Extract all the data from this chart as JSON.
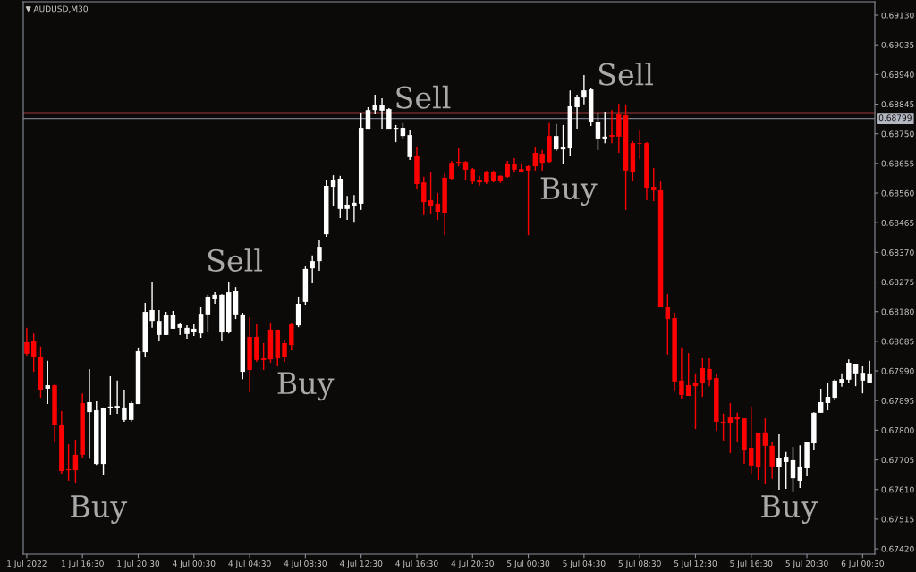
{
  "chart_data": {
    "type": "candlestick",
    "title": "AUDUSD,M30",
    "categories": [
      "1 Jul 2022",
      null,
      null,
      null,
      null,
      null,
      null,
      null,
      "1 Jul 16:30",
      null,
      null,
      null,
      null,
      null,
      null,
      null,
      "1 Jul 20:30",
      null,
      null,
      null,
      null,
      null,
      null,
      null,
      "4 Jul 00:30",
      null,
      null,
      null,
      null,
      null,
      null,
      null,
      "4 Jul 04:30",
      null,
      null,
      null,
      null,
      null,
      null,
      null,
      "4 Jul 08:30",
      null,
      null,
      null,
      null,
      null,
      null,
      null,
      "4 Jul 12:30",
      null,
      null,
      null,
      null,
      null,
      null,
      null,
      "4 Jul 16:30",
      null,
      null,
      null,
      null,
      null,
      null,
      null,
      "4 Jul 20:30",
      null,
      null,
      null,
      null,
      null,
      null,
      null,
      "5 Jul 00:30",
      null,
      null,
      null,
      null,
      null,
      null,
      null,
      "5 Jul 04:30",
      null,
      null,
      null,
      null,
      null,
      null,
      null,
      "5 Jul 08:30",
      null,
      null,
      null,
      null,
      null,
      null,
      null,
      "5 Jul 12:30",
      null,
      null,
      null,
      null,
      null,
      null,
      null,
      "5 Jul 16:30",
      null,
      null,
      null,
      null,
      null,
      null,
      null,
      "5 Jul 20:30",
      null,
      null,
      null,
      null,
      null,
      null,
      null,
      "6 Jul 00:30",
      null
    ],
    "ohlc": [
      [
        0.68082,
        0.68128,
        0.68039,
        0.68045
      ],
      [
        0.68085,
        0.6811,
        0.67987,
        0.68033
      ],
      [
        0.68036,
        0.68068,
        0.67904,
        0.6793
      ],
      [
        0.67933,
        0.68022,
        0.67884,
        0.67944
      ],
      [
        0.67944,
        0.67947,
        0.67764,
        0.67818
      ],
      [
        0.67818,
        0.67861,
        0.67661,
        0.67669
      ],
      [
        0.67675,
        0.67755,
        0.67638,
        0.67672
      ],
      [
        0.67721,
        0.6777,
        0.67632,
        0.67672
      ],
      [
        0.67887,
        0.67918,
        0.67712,
        0.67721
      ],
      [
        0.67858,
        0.67996,
        0.67709,
        0.6789
      ],
      [
        0.67692,
        0.67893,
        0.67689,
        0.67864
      ],
      [
        0.67692,
        0.67873,
        0.67658,
        0.6787
      ],
      [
        0.6787,
        0.67973,
        0.6785,
        0.67876
      ],
      [
        0.6787,
        0.67959,
        0.67853,
        0.67878
      ],
      [
        0.67833,
        0.6793,
        0.67827,
        0.67873
      ],
      [
        0.67833,
        0.67893,
        0.67827,
        0.67887
      ],
      [
        0.67884,
        0.68065,
        0.67884,
        0.68053
      ],
      [
        0.6805,
        0.68208,
        0.68036,
        0.68179
      ],
      [
        0.6815,
        0.68276,
        0.68128,
        0.68185
      ],
      [
        0.68105,
        0.68185,
        0.68085,
        0.6815
      ],
      [
        0.68105,
        0.68179,
        0.68105,
        0.68168
      ],
      [
        0.68125,
        0.68182,
        0.68125,
        0.68168
      ],
      [
        0.68128,
        0.68145,
        0.68105,
        0.68139
      ],
      [
        0.68108,
        0.68136,
        0.68093,
        0.68128
      ],
      [
        0.68116,
        0.68142,
        0.68102,
        0.68125
      ],
      [
        0.6811,
        0.68196,
        0.68096,
        0.68173
      ],
      [
        0.68171,
        0.68234,
        0.68113,
        0.68228
      ],
      [
        0.68222,
        0.68242,
        0.68205,
        0.68234
      ],
      [
        0.68113,
        0.68236,
        0.68085,
        0.68234
      ],
      [
        0.68116,
        0.68274,
        0.6811,
        0.68242
      ],
      [
        0.68171,
        0.68259,
        0.68156,
        0.68245
      ],
      [
        0.67987,
        0.68176,
        0.67964,
        0.68171
      ],
      [
        0.68099,
        0.68162,
        0.67921,
        0.67993
      ],
      [
        0.68099,
        0.68139,
        0.68019,
        0.68025
      ],
      [
        0.6803,
        0.68079,
        0.67993,
        0.68025
      ],
      [
        0.68122,
        0.68145,
        0.68016,
        0.68027
      ],
      [
        0.68122,
        0.68122,
        0.68005,
        0.6803
      ],
      [
        0.68079,
        0.6809,
        0.68019,
        0.68033
      ],
      [
        0.68139,
        0.68145,
        0.68056,
        0.68073
      ],
      [
        0.68136,
        0.68228,
        0.6813,
        0.68205
      ],
      [
        0.68211,
        0.68325,
        0.68202,
        0.68317
      ],
      [
        0.68319,
        0.6836,
        0.68271,
        0.68342
      ],
      [
        0.68342,
        0.68411,
        0.68311,
        0.68388
      ],
      [
        0.68428,
        0.68603,
        0.6842,
        0.68583
      ],
      [
        0.6858,
        0.68617,
        0.68517,
        0.68603
      ],
      [
        0.68509,
        0.68615,
        0.6848,
        0.68606
      ],
      [
        0.68509,
        0.68551,
        0.68474,
        0.68523
      ],
      [
        0.6852,
        0.68554,
        0.68468,
        0.68529
      ],
      [
        0.68526,
        0.68818,
        0.68506,
        0.68769
      ],
      [
        0.68766,
        0.68835,
        0.68766,
        0.68826
      ],
      [
        0.68826,
        0.68875,
        0.68815,
        0.68841
      ],
      [
        0.68824,
        0.68864,
        0.68766,
        0.68841
      ],
      [
        0.68766,
        0.68832,
        0.68766,
        0.68829
      ],
      [
        0.68766,
        0.68778,
        0.68723,
        0.68769
      ],
      [
        0.68743,
        0.68784,
        0.68735,
        0.68769
      ],
      [
        0.68675,
        0.68761,
        0.68666,
        0.68746
      ],
      [
        0.6868,
        0.68706,
        0.68574,
        0.68589
      ],
      [
        0.68594,
        0.68612,
        0.68489,
        0.68531
      ],
      [
        0.68537,
        0.68626,
        0.68494,
        0.68517
      ],
      [
        0.68526,
        0.6856,
        0.68474,
        0.685
      ],
      [
        0.68609,
        0.68623,
        0.68425,
        0.68497
      ],
      [
        0.68657,
        0.68663,
        0.68603,
        0.68606
      ],
      [
        0.6866,
        0.68703,
        0.68646,
        0.68657
      ],
      [
        0.6866,
        0.68663,
        0.68603,
        0.68635
      ],
      [
        0.68637,
        0.6864,
        0.68589,
        0.68597
      ],
      [
        0.68603,
        0.68615,
        0.68583,
        0.68594
      ],
      [
        0.68629,
        0.68632,
        0.68589,
        0.68594
      ],
      [
        0.68629,
        0.68632,
        0.68594,
        0.686
      ],
      [
        0.68615,
        0.68617,
        0.68592,
        0.686
      ],
      [
        0.68652,
        0.68663,
        0.68609,
        0.68612
      ],
      [
        0.68652,
        0.68672,
        0.68629,
        0.68635
      ],
      [
        0.68637,
        0.68655,
        0.68626,
        0.68626
      ],
      [
        0.68646,
        0.68649,
        0.68425,
        0.68632
      ],
      [
        0.68689,
        0.68706,
        0.68632,
        0.68646
      ],
      [
        0.68686,
        0.68698,
        0.68632,
        0.68657
      ],
      [
        0.68743,
        0.68784,
        0.68657,
        0.6866
      ],
      [
        0.687,
        0.68781,
        0.68695,
        0.68743
      ],
      [
        0.687,
        0.68778,
        0.68652,
        0.68706
      ],
      [
        0.68703,
        0.68889,
        0.68678,
        0.68838
      ],
      [
        0.68835,
        0.68875,
        0.68766,
        0.68869
      ],
      [
        0.68866,
        0.68938,
        0.68844,
        0.68889
      ],
      [
        0.68789,
        0.68898,
        0.68775,
        0.68892
      ],
      [
        0.68735,
        0.68818,
        0.68698,
        0.68789
      ],
      [
        0.68735,
        0.68821,
        0.6872,
        0.68741
      ],
      [
        0.68746,
        0.68826,
        0.6872,
        0.68741
      ],
      [
        0.68812,
        0.68846,
        0.68689,
        0.68741
      ],
      [
        0.68809,
        0.68841,
        0.68506,
        0.68632
      ],
      [
        0.6872,
        0.68726,
        0.68597,
        0.68626
      ],
      [
        0.6872,
        0.68763,
        0.68669,
        0.68718
      ],
      [
        0.6872,
        0.68723,
        0.68537,
        0.68577
      ],
      [
        0.6858,
        0.6864,
        0.68534,
        0.68569
      ],
      [
        0.68569,
        0.68597,
        0.68196,
        0.68196
      ],
      [
        0.68196,
        0.68236,
        0.68042,
        0.68156
      ],
      [
        0.68159,
        0.68176,
        0.67927,
        0.67956
      ],
      [
        0.67959,
        0.68065,
        0.67901,
        0.67913
      ],
      [
        0.67944,
        0.68047,
        0.6791,
        0.6791
      ],
      [
        0.67953,
        0.67982,
        0.67804,
        0.67941
      ],
      [
        0.67999,
        0.6803,
        0.67907,
        0.6795
      ],
      [
        0.67996,
        0.6803,
        0.67941,
        0.67962
      ],
      [
        0.67967,
        0.67979,
        0.67798,
        0.67827
      ],
      [
        0.67827,
        0.67853,
        0.67767,
        0.67824
      ],
      [
        0.67841,
        0.67887,
        0.67727,
        0.67824
      ],
      [
        0.67841,
        0.67856,
        0.67764,
        0.67835
      ],
      [
        0.67838,
        0.67838,
        0.67692,
        0.67738
      ],
      [
        0.67744,
        0.67876,
        0.67661,
        0.67687
      ],
      [
        0.6779,
        0.67793,
        0.67641,
        0.67681
      ],
      [
        0.67793,
        0.67838,
        0.67629,
        0.6775
      ],
      [
        0.6775,
        0.67764,
        0.67644,
        0.67684
      ],
      [
        0.67681,
        0.67787,
        0.67609,
        0.67712
      ],
      [
        0.67698,
        0.6773,
        0.67612,
        0.67715
      ],
      [
        0.67646,
        0.67747,
        0.67604,
        0.67704
      ],
      [
        0.67638,
        0.67752,
        0.67615,
        0.67684
      ],
      [
        0.67678,
        0.67764,
        0.67652,
        0.67761
      ],
      [
        0.67758,
        0.67858,
        0.67738,
        0.67856
      ],
      [
        0.67856,
        0.67933,
        0.67856,
        0.6789
      ],
      [
        0.67887,
        0.6795,
        0.67864,
        0.67907
      ],
      [
        0.67904,
        0.67964,
        0.67896,
        0.67959
      ],
      [
        0.67953,
        0.67982,
        0.67939,
        0.67964
      ],
      [
        0.67962,
        0.68027,
        0.6795,
        0.68016
      ],
      [
        0.67982,
        0.68013,
        0.67941,
        0.68013
      ],
      [
        0.67959,
        0.68005,
        0.67918,
        0.67984
      ],
      [
        0.67953,
        0.68022,
        0.67953,
        0.67982
      ]
    ],
    "colors": [
      "#ff0000",
      "#ff0000",
      "#ff0000",
      "#ffffff",
      "#ff0000",
      "#ff0000",
      "#ff0000",
      "#ff0000",
      "#ff0000",
      "#ffffff",
      "#ffffff",
      "#ffffff",
      "#ffffff",
      "#ffffff",
      "#ffffff",
      "#ffffff",
      "#ffffff",
      "#ffffff",
      "#ffffff",
      "#ffffff",
      "#ffffff",
      "#ffffff",
      "#ffffff",
      "#ffffff",
      "#ffffff",
      "#ffffff",
      "#ffffff",
      "#ffffff",
      "#ffffff",
      "#ffffff",
      "#ffffff",
      "#ffffff",
      "#ff0000",
      "#ff0000",
      "#ff0000",
      "#ff0000",
      "#ff0000",
      "#ff0000",
      "#ff0000",
      "#ffffff",
      "#ffffff",
      "#ffffff",
      "#ffffff",
      "#ffffff",
      "#ffffff",
      "#ffffff",
      "#ffffff",
      "#ffffff",
      "#ffffff",
      "#ffffff",
      "#ffffff",
      "#ffffff",
      "#ffffff",
      "#ffffff",
      "#ffffff",
      "#ffffff",
      "#ff0000",
      "#ff0000",
      "#ff0000",
      "#ff0000",
      "#ff0000",
      "#ff0000",
      "#ff0000",
      "#ff0000",
      "#ff0000",
      "#ff0000",
      "#ff0000",
      "#ff0000",
      "#ff0000",
      "#ff0000",
      "#ff0000",
      "#ff0000",
      "#ff0000",
      "#ff0000",
      "#ff0000",
      "#ff0000",
      "#ffffff",
      "#ffffff",
      "#ffffff",
      "#ffffff",
      "#ffffff",
      "#ffffff",
      "#ffffff",
      "#ffffff",
      "#ff0000",
      "#ff0000",
      "#ff0000",
      "#ff0000",
      "#ff0000",
      "#ff0000",
      "#ff0000",
      "#ff0000",
      "#ff0000",
      "#ff0000",
      "#ff0000",
      "#ff0000",
      "#ff0000",
      "#ff0000",
      "#ff0000",
      "#ff0000",
      "#ff0000",
      "#ff0000",
      "#ff0000",
      "#ff0000",
      "#ff0000",
      "#ff0000",
      "#ff0000",
      "#ff0000",
      "#ffffff",
      "#ffffff",
      "#ffffff",
      "#ffffff",
      "#ffffff",
      "#ffffff",
      "#ffffff",
      "#ffffff",
      "#ffffff",
      "#ffffff",
      "#ffffff",
      "#ffffff",
      "#ffffff",
      "#ffffff"
    ],
    "ylim": [
      0.67403,
      0.69173
    ],
    "yticks": [
      {
        "value": 0.6913,
        "label": "0.69130"
      },
      {
        "value": 0.69035,
        "label": "0.69035"
      },
      {
        "value": 0.6894,
        "label": "0.68940"
      },
      {
        "value": 0.68845,
        "label": "0.68845"
      },
      {
        "value": 0.6875,
        "label": "0.68750"
      },
      {
        "value": 0.68655,
        "label": "0.68655"
      },
      {
        "value": 0.6856,
        "label": "0.68560"
      },
      {
        "value": 0.68465,
        "label": "0.68465"
      },
      {
        "value": 0.6837,
        "label": "0.68370"
      },
      {
        "value": 0.68275,
        "label": "0.68275"
      },
      {
        "value": 0.6818,
        "label": "0.68180"
      },
      {
        "value": 0.68085,
        "label": "0.68085"
      },
      {
        "value": 0.6799,
        "label": "0.67990"
      },
      {
        "value": 0.67895,
        "label": "0.67895"
      },
      {
        "value": 0.678,
        "label": "0.67800"
      },
      {
        "value": 0.67705,
        "label": "0.67705"
      },
      {
        "value": 0.6761,
        "label": "0.67610"
      },
      {
        "value": 0.67515,
        "label": "0.67515"
      },
      {
        "value": 0.6742,
        "label": "0.67420"
      }
    ],
    "ref_lines": [
      {
        "axis": "y",
        "value": 0.68818,
        "color": "#6e2a2a"
      },
      {
        "axis": "y",
        "value": 0.68799,
        "label": "0.68799",
        "color": "#767a88"
      }
    ],
    "annotations": [
      "Buy",
      "Sell",
      "Buy",
      "Sell",
      "Buy",
      "Sell",
      "Buy"
    ]
  }
}
